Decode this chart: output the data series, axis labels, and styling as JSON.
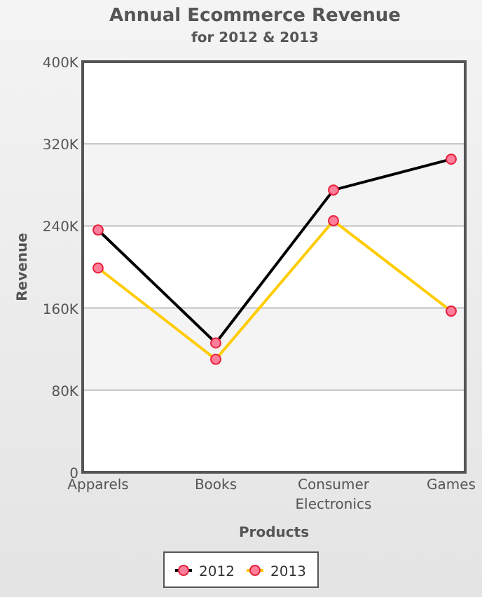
{
  "chart_data": {
    "type": "line",
    "title": "Annual Ecommerce Revenue",
    "subtitle": "for 2012 & 2013",
    "xlabel": "Products",
    "ylabel": "Revenue",
    "categories": [
      "Apparels",
      "Books",
      "Consumer Electronics",
      "Games"
    ],
    "series": [
      {
        "name": "2012",
        "color": "#000000",
        "values": [
          236000,
          126000,
          275000,
          305000
        ]
      },
      {
        "name": "2013",
        "color": "#ffcc00",
        "values": [
          199000,
          110000,
          245000,
          157000
        ]
      }
    ],
    "ylim": [
      0,
      400000
    ],
    "yticks": [
      {
        "value": 0,
        "label": "0"
      },
      {
        "value": 80000,
        "label": "80K"
      },
      {
        "value": 160000,
        "label": "160K"
      },
      {
        "value": 240000,
        "label": "240K"
      },
      {
        "value": 320000,
        "label": "320K"
      },
      {
        "value": 400000,
        "label": "400K"
      }
    ],
    "grid": "y",
    "legend": "bottom",
    "marker": "circle",
    "line_style": "solid"
  }
}
